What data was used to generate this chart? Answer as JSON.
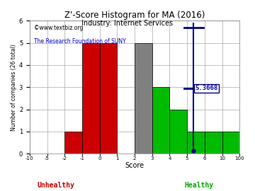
{
  "title": "Z'-Score Histogram for MA (2016)",
  "subtitle": "Industry: Internet Services",
  "watermark1": "©www.textbiz.org",
  "watermark2": "The Research Foundation of SUNY",
  "xlabel": "Score",
  "ylabel": "Number of companies (26 total)",
  "ylabel_unhealthy": "Unhealthy",
  "ylabel_healthy": "Healthy",
  "bin_left_labels": [
    "-10",
    "-5",
    "-2",
    "-1",
    "0",
    "1",
    "2",
    "3",
    "4",
    "5",
    "6",
    "10",
    "100"
  ],
  "bar_heights": [
    0,
    0,
    1,
    5,
    5,
    0,
    5,
    3,
    2,
    1,
    1,
    1
  ],
  "bar_colors": [
    "#cc0000",
    "#cc0000",
    "#cc0000",
    "#cc0000",
    "#cc0000",
    "#808080",
    "#808080",
    "#00bb00",
    "#00bb00",
    "#00bb00",
    "#00bb00",
    "#00bb00"
  ],
  "ma_score_bin": 9.37,
  "ma_score_label": "5.3668",
  "ylim": [
    0,
    6
  ],
  "yticks": [
    0,
    1,
    2,
    3,
    4,
    5,
    6
  ],
  "title_color": "#000000",
  "subtitle_color": "#000000",
  "watermark1_color": "#000000",
  "watermark2_color": "#0000cc",
  "unhealthy_color": "#cc0000",
  "healthy_color": "#00aa00",
  "score_label_color": "#0000cc",
  "score_line_color": "#00008b",
  "bg_color": "#ffffff",
  "grid_color": "#aaaaaa"
}
